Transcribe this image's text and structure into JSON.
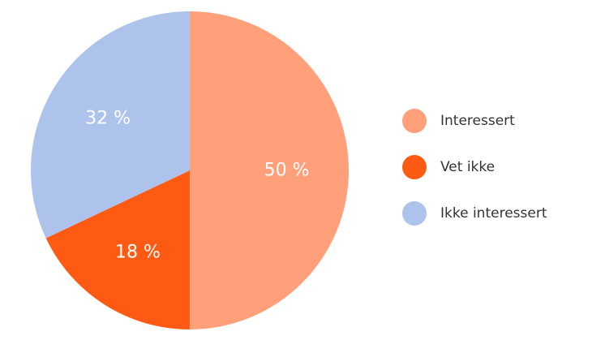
{
  "chart_data": {
    "type": "pie",
    "title": "",
    "categories": [
      "Interessert",
      "Vet ikke",
      "Ikke interessert"
    ],
    "values": [
      50,
      18,
      32
    ],
    "data_labels": [
      "50 %",
      "18 %",
      "32 %"
    ],
    "colors": [
      "#FFA07A",
      "#FF5A14",
      "#AEC3EC"
    ],
    "label_color": "#ffffff",
    "legend": {
      "placement": "right",
      "entries": [
        "Interessert",
        "Vet ikke",
        "Ikke interessert"
      ]
    }
  }
}
